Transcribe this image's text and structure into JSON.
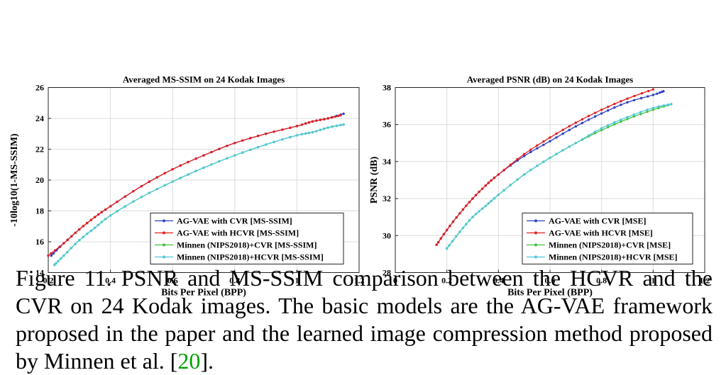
{
  "caption": {
    "text": "Figure 11. PSNR and MS-SSIM comparison between the HCVR and the CVR on 24 Kodak images. The basic models are the AG-VAE framework proposed in the paper and the learned image compression method proposed by Minnen et al. [",
    "citation": "20",
    "tail": "]."
  },
  "colors": {
    "series": [
      "#3040c0",
      "#e02020",
      "#40c040",
      "#50c8d8"
    ]
  },
  "chart_data": [
    {
      "type": "line",
      "title": "Averaged MS-SSIM on 24 Kodak Images",
      "xlabel": "Bits Per Pixel (BPP)",
      "ylabel": "-10log10(1-MS-SSIM)",
      "xlim": [
        0.2,
        1.2
      ],
      "ylim": [
        14,
        26
      ],
      "xticks": [
        0.2,
        0.4,
        0.6,
        0.8,
        1,
        1.2
      ],
      "yticks": [
        14,
        16,
        18,
        20,
        22,
        24,
        26
      ],
      "grid": true,
      "legend": "bottom-right",
      "series": [
        {
          "name": "AG-VAE with CVR [MS-SSIM]",
          "x": [
            0.21,
            0.25,
            0.3,
            0.35,
            0.4,
            0.5,
            0.6,
            0.7,
            0.8,
            0.9,
            1.0,
            1.05,
            1.1,
            1.15
          ],
          "y": [
            15.1,
            15.9,
            16.8,
            17.6,
            18.3,
            19.6,
            20.7,
            21.6,
            22.4,
            23.0,
            23.5,
            23.8,
            24.0,
            24.3
          ]
        },
        {
          "name": "AG-VAE with HCVR [MS-SSIM]",
          "x": [
            0.2,
            0.25,
            0.3,
            0.35,
            0.4,
            0.5,
            0.6,
            0.7,
            0.8,
            0.9,
            1.0,
            1.05,
            1.1,
            1.14
          ],
          "y": [
            15.1,
            15.9,
            16.8,
            17.6,
            18.3,
            19.6,
            20.7,
            21.6,
            22.4,
            23.0,
            23.5,
            23.8,
            24.0,
            24.2
          ]
        },
        {
          "name": "Minnen (NIPS2018)+CVR [MS-SSIM]",
          "x": [
            0.22,
            0.25,
            0.3,
            0.35,
            0.4,
            0.5,
            0.6,
            0.7,
            0.8,
            0.9,
            1.0,
            1.05,
            1.1,
            1.15
          ],
          "y": [
            14.5,
            15.1,
            16.1,
            16.9,
            17.7,
            18.9,
            19.9,
            20.8,
            21.6,
            22.3,
            22.9,
            23.1,
            23.4,
            23.6
          ]
        },
        {
          "name": "Minnen (NIPS2018)+HCVR [MS-SSIM]",
          "x": [
            0.22,
            0.25,
            0.3,
            0.35,
            0.4,
            0.5,
            0.6,
            0.7,
            0.8,
            0.9,
            1.0,
            1.05,
            1.1,
            1.15
          ],
          "y": [
            14.5,
            15.1,
            16.1,
            16.9,
            17.7,
            18.9,
            19.9,
            20.8,
            21.6,
            22.3,
            22.9,
            23.1,
            23.4,
            23.6
          ]
        }
      ]
    },
    {
      "type": "line",
      "title": "Averaged PSNR (dB) on 24 Kodak Images",
      "xlabel": "Bits Per Pixel (BPP)",
      "ylabel": "PSNR (dB)",
      "xlim": [
        0,
        1.2
      ],
      "ylim": [
        28,
        38
      ],
      "xticks": [
        0,
        0.2,
        0.4,
        0.6,
        0.8,
        1,
        1.2
      ],
      "yticks": [
        28,
        30,
        32,
        34,
        36,
        38
      ],
      "grid": true,
      "legend": "bottom-right",
      "series": [
        {
          "name": "AG-VAE with CVR [MSE]",
          "x": [
            0.16,
            0.2,
            0.25,
            0.3,
            0.35,
            0.4,
            0.5,
            0.6,
            0.7,
            0.8,
            0.9,
            1.0,
            1.04
          ],
          "y": [
            29.5,
            30.3,
            31.2,
            32.0,
            32.7,
            33.3,
            34.3,
            35.1,
            35.9,
            36.6,
            37.2,
            37.6,
            37.8
          ]
        },
        {
          "name": "AG-VAE with HCVR [MSE]",
          "x": [
            0.16,
            0.2,
            0.25,
            0.3,
            0.35,
            0.4,
            0.5,
            0.6,
            0.7,
            0.8,
            0.9,
            1.0
          ],
          "y": [
            29.5,
            30.3,
            31.2,
            32.0,
            32.7,
            33.3,
            34.4,
            35.3,
            36.1,
            36.8,
            37.4,
            37.9
          ]
        },
        {
          "name": "Minnen (NIPS2018)+CVR [MSE]",
          "x": [
            0.2,
            0.25,
            0.3,
            0.35,
            0.4,
            0.5,
            0.6,
            0.7,
            0.8,
            0.9,
            1.0,
            1.07
          ],
          "y": [
            29.3,
            30.2,
            31.0,
            31.6,
            32.2,
            33.3,
            34.2,
            35.0,
            35.7,
            36.3,
            36.8,
            37.1
          ]
        },
        {
          "name": "Minnen (NIPS2018)+HCVR [MSE]",
          "x": [
            0.2,
            0.25,
            0.3,
            0.35,
            0.4,
            0.5,
            0.6,
            0.7,
            0.8,
            0.9,
            1.0,
            1.07
          ],
          "y": [
            29.3,
            30.2,
            31.0,
            31.6,
            32.2,
            33.3,
            34.2,
            35.0,
            35.8,
            36.4,
            36.9,
            37.1
          ]
        }
      ]
    }
  ]
}
